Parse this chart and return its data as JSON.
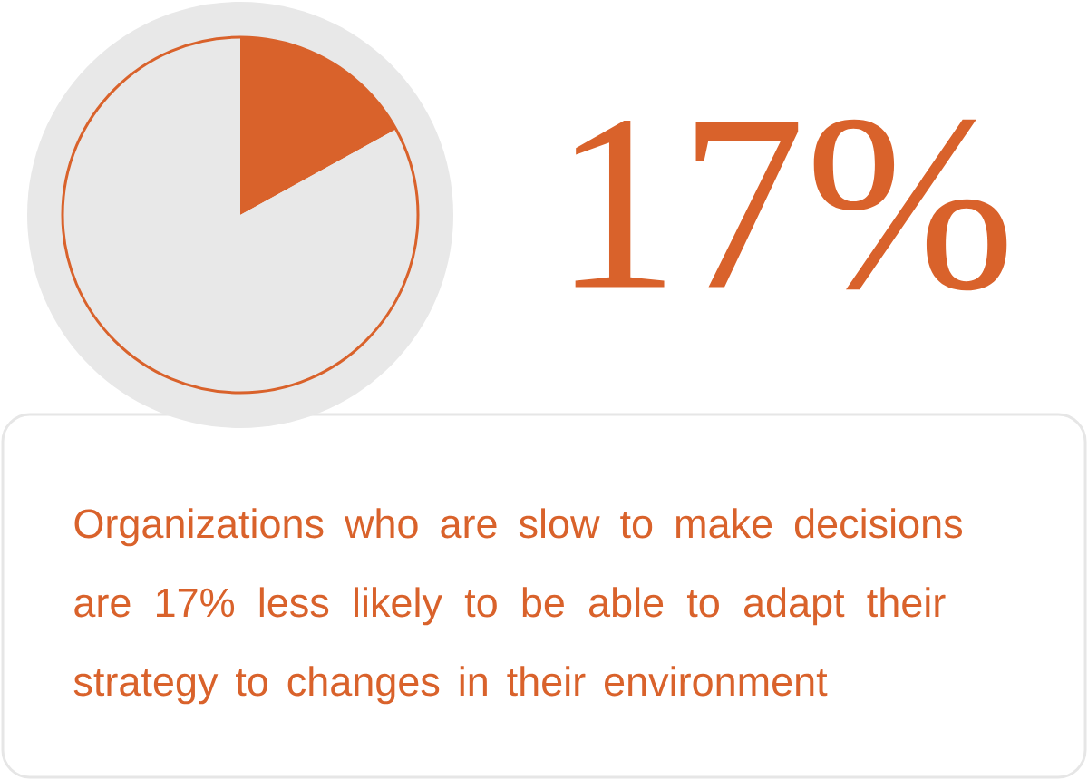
{
  "chart_data": {
    "type": "pie",
    "categories": [
      null,
      null
    ],
    "values": [
      17,
      83
    ],
    "colors": [
      "#d9622b",
      "#e8e8e8"
    ],
    "value_labels": [
      "17%",
      null
    ],
    "annotations": [
      "Organizations who are slow to make decisions are 17% less likely to be able to adapt their strategy to changes in their environment"
    ]
  }
}
